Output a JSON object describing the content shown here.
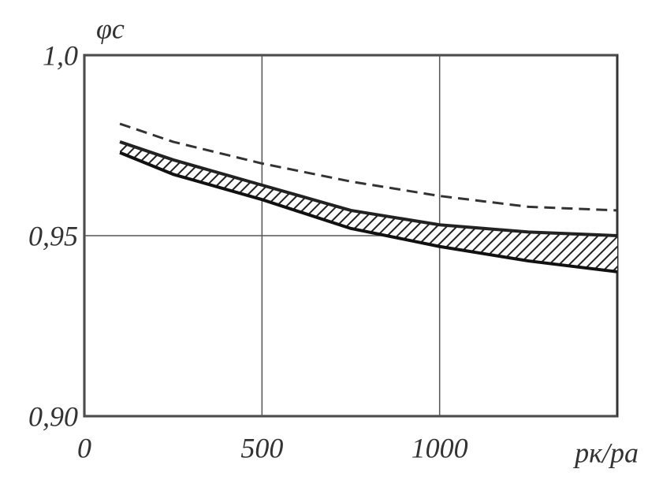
{
  "chart_data": {
    "type": "line",
    "x_label": "pк/pа",
    "y_label": "φc",
    "x": [
      100,
      250,
      500,
      750,
      1000,
      1250,
      1500
    ],
    "series": [
      {
        "color": "#333333",
        "dash": true,
        "values": [
          0.981,
          0.976,
          0.97,
          0.965,
          0.961,
          0.958,
          0.957
        ]
      },
      {
        "color": "#222222",
        "dash": false,
        "values": [
          0.976,
          0.971,
          0.964,
          0.957,
          0.953,
          0.951,
          0.95
        ]
      },
      {
        "color": "#111111",
        "dash": false,
        "values": [
          0.973,
          0.967,
          0.96,
          0.952,
          0.947,
          0.943,
          0.94
        ]
      }
    ],
    "hatch_between": [
      1,
      2
    ],
    "xlim": [
      0,
      1500
    ],
    "ylim": [
      0.9,
      1.0
    ],
    "xticks": [
      0,
      500,
      1000
    ],
    "yticks": [
      {
        "value": 0.9,
        "label": "0,90"
      },
      {
        "value": 0.95,
        "label": "0,95"
      },
      {
        "value": 1.0,
        "label": "1,0"
      }
    ],
    "grid": true
  }
}
